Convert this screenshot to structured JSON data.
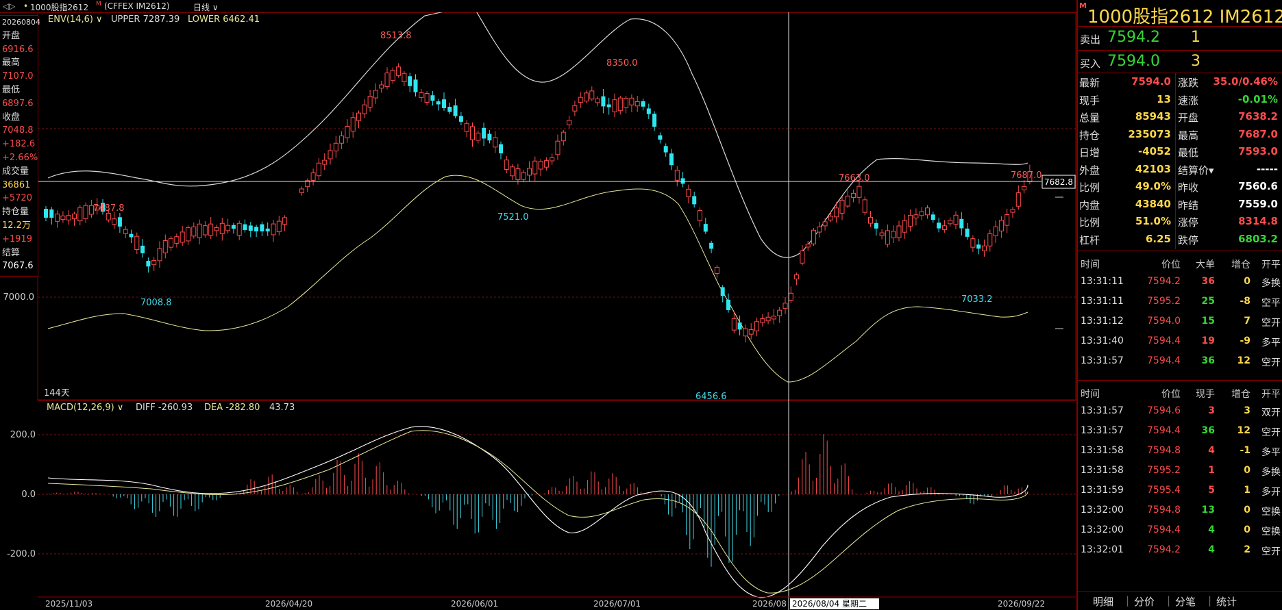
{
  "topbar": {
    "title": "1000股指2612",
    "exchange": "(CFFEX IM2612)",
    "period": "日线"
  },
  "main_chart": {
    "indicator": "ENV(14,6)",
    "upper": "UPPER 7287.39",
    "lower": "LOWER 6462.41",
    "y_label": "7000.0",
    "days_label": "144天",
    "price_badge": "7682.8",
    "annotations": {
      "a1": "8513.8",
      "a2": "8350.0",
      "a3": "7487.8",
      "a4": "7521.0",
      "a5": "7008.8",
      "a6": "6456.6",
      "a7": "7663.0",
      "a8": "7687.0",
      "a9": "7033.2"
    }
  },
  "macd": {
    "name": "MACD(12,26,9)",
    "diff": "DIFF -260.93",
    "dea": "DEA -282.80",
    "macd": "43.73",
    "y_labels": [
      "200.0",
      "0.0",
      "-200.0"
    ]
  },
  "x_axis": {
    "d1": "2025/11/03",
    "d2": "2026/04/20",
    "d3": "2026/06/01",
    "d4": "2026/07/01",
    "d5": "2026/08",
    "cursor": "2026/08/04 星期二",
    "d6": "2026/09/22"
  },
  "left_info": {
    "date": "20260804",
    "open_label": "开盘",
    "open": "6916.6",
    "high_label": "最高",
    "high": "7107.0",
    "low_label": "最低",
    "low": "6897.6",
    "close_label": "收盘",
    "close": "7048.8",
    "chg": "+182.6",
    "chg_pct": "+2.66%",
    "vol_label": "成交量",
    "vol": "36861",
    "vol_chg": "+5720",
    "oi_label": "持仓量",
    "oi": "12.2万",
    "oi_chg": "+1919",
    "settle_label": "结算",
    "settle": "7067.6"
  },
  "quote": {
    "badge": "M",
    "title": "1000股指2612  IM2612",
    "sell_label": "卖出",
    "sell_price": "7594.2",
    "sell_qty": "1",
    "buy_label": "买入",
    "buy_price": "7594.0",
    "buy_qty": "3",
    "stats": [
      {
        "l1": "最新",
        "v1": "7594.0",
        "l2": "涨跌",
        "v2": "35.0/0.46%"
      },
      {
        "l1": "现手",
        "v1": "13",
        "l2": "速涨",
        "v2": "-0.01%"
      },
      {
        "l1": "总量",
        "v1": "85943",
        "l2": "开盘",
        "v2": "7638.2"
      },
      {
        "l1": "持仓",
        "v1": "235073",
        "l2": "最高",
        "v2": "7687.0"
      },
      {
        "l1": "日增",
        "v1": "-4052",
        "l2": "最低",
        "v2": "7593.0"
      },
      {
        "l1": "外盘",
        "v1": "42103",
        "l2": "结算价▾",
        "v2": "-----"
      },
      {
        "l1": "比例",
        "v1": "49.0%",
        "l2": "昨收",
        "v2": "7560.6"
      },
      {
        "l1": "内盘",
        "v1": "43840",
        "l2": "昨结",
        "v2": "7559.0"
      },
      {
        "l1": "比例",
        "v1": "51.0%",
        "l2": "涨停",
        "v2": "8314.8"
      },
      {
        "l1": "杠杆",
        "v1": "6.25",
        "l2": "跌停",
        "v2": "6803.2"
      }
    ],
    "big_header": {
      "c1": "时间",
      "c2": "价位",
      "c3": "大单",
      "c4": "增仓",
      "c5": "开平"
    },
    "big_rows": [
      {
        "t": "13:31:11",
        "p": "7594.2",
        "q": "36",
        "d": "0",
        "k": "多换"
      },
      {
        "t": "13:31:11",
        "p": "7595.2",
        "q": "25",
        "d": "-8",
        "k": "空平"
      },
      {
        "t": "13:31:12",
        "p": "7594.0",
        "q": "15",
        "d": "7",
        "k": "空开"
      },
      {
        "t": "13:31:40",
        "p": "7594.4",
        "q": "19",
        "d": "-9",
        "k": "多平"
      },
      {
        "t": "13:31:57",
        "p": "7594.4",
        "q": "36",
        "d": "12",
        "k": "空开"
      }
    ],
    "tick_header": {
      "c1": "时间",
      "c2": "价位",
      "c3": "现手",
      "c4": "增仓",
      "c5": "开平"
    },
    "tick_rows": [
      {
        "t": "13:31:57",
        "p": "7594.6",
        "q": "3",
        "d": "3",
        "k": "双开"
      },
      {
        "t": "13:31:57",
        "p": "7594.4",
        "q": "36",
        "d": "12",
        "k": "空开"
      },
      {
        "t": "13:31:58",
        "p": "7594.8",
        "q": "4",
        "d": "-1",
        "k": "多平"
      },
      {
        "t": "13:31:58",
        "p": "7595.2",
        "q": "1",
        "d": "0",
        "k": "多换"
      },
      {
        "t": "13:31:59",
        "p": "7595.4",
        "q": "5",
        "d": "1",
        "k": "多开"
      },
      {
        "t": "13:32:00",
        "p": "7594.8",
        "q": "13",
        "d": "0",
        "k": "空换"
      },
      {
        "t": "13:32:00",
        "p": "7594.4",
        "q": "4",
        "d": "0",
        "k": "空换"
      },
      {
        "t": "13:32:01",
        "p": "7594.2",
        "q": "4",
        "d": "2",
        "k": "空开"
      }
    ],
    "tabs": [
      "明细",
      "分价",
      "分笔",
      "统计"
    ]
  }
}
